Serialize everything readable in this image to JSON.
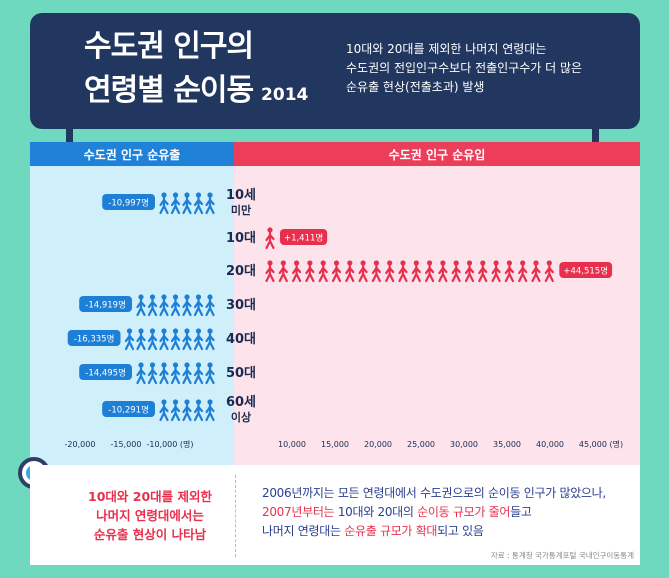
{
  "header": {
    "title_line1": "수도권 인구의",
    "title_line2": "연령별 순이동",
    "year": "2014",
    "desc_lines": [
      "10대와 20대를 제외한 나머지 연령대는",
      "수도권의 전입인구수보다 전출인구수가 더 많은",
      "순유출 현상(전출초과) 발생"
    ]
  },
  "panel": {
    "left_header": "수도권 인구 순유출",
    "right_header": "수도권 인구 순유입"
  },
  "chart_data": {
    "type": "bar",
    "categories": [
      "10세 미만",
      "10대",
      "20대",
      "30대",
      "40대",
      "50대",
      "60세 이상"
    ],
    "series": [
      {
        "values": [
          -10997,
          1411,
          44515,
          -14919,
          -16335,
          -14495,
          -10291
        ]
      }
    ],
    "value_labels": [
      "-10,997명",
      "+1,411명",
      "+44,515명",
      "-14,919명",
      "-16,335명",
      "-14,495명",
      "-10,291명"
    ],
    "xticks_left": [
      "-20,000",
      "-15,000",
      "-10,000 (명)"
    ],
    "xticks_right": [
      "10,000",
      "15,000",
      "20,000",
      "25,000",
      "30,000",
      "35,000",
      "40,000",
      "45,000 (명)"
    ],
    "xlim": [
      -20000,
      45000
    ],
    "units_per_icon": 2000,
    "colors": {
      "outflow": "#1e7fd6",
      "inflow": "#e8304e"
    }
  },
  "bottom": {
    "conclusion_lines": [
      "10대와 20대를 제외한",
      "나머지 연령대에서는",
      "순유출 현상이 나타남"
    ],
    "note_line1": "2006년까지는 모든 연령대에서 수도권으로의 순이동 인구가 많았으나,",
    "note_line2_a": "2007년부터는",
    "note_line2_b": " 10대와 20대의 ",
    "note_line2_c": "순이동 규모가 줄어",
    "note_line2_d": "들고",
    "note_line3_a": "나머지 연령대는 ",
    "note_line3_b": "순유출 규모가 확대",
    "note_line3_c": "되고 있음",
    "source": "자료 : 통계청 국가통계포털 국내인구이동통계"
  }
}
